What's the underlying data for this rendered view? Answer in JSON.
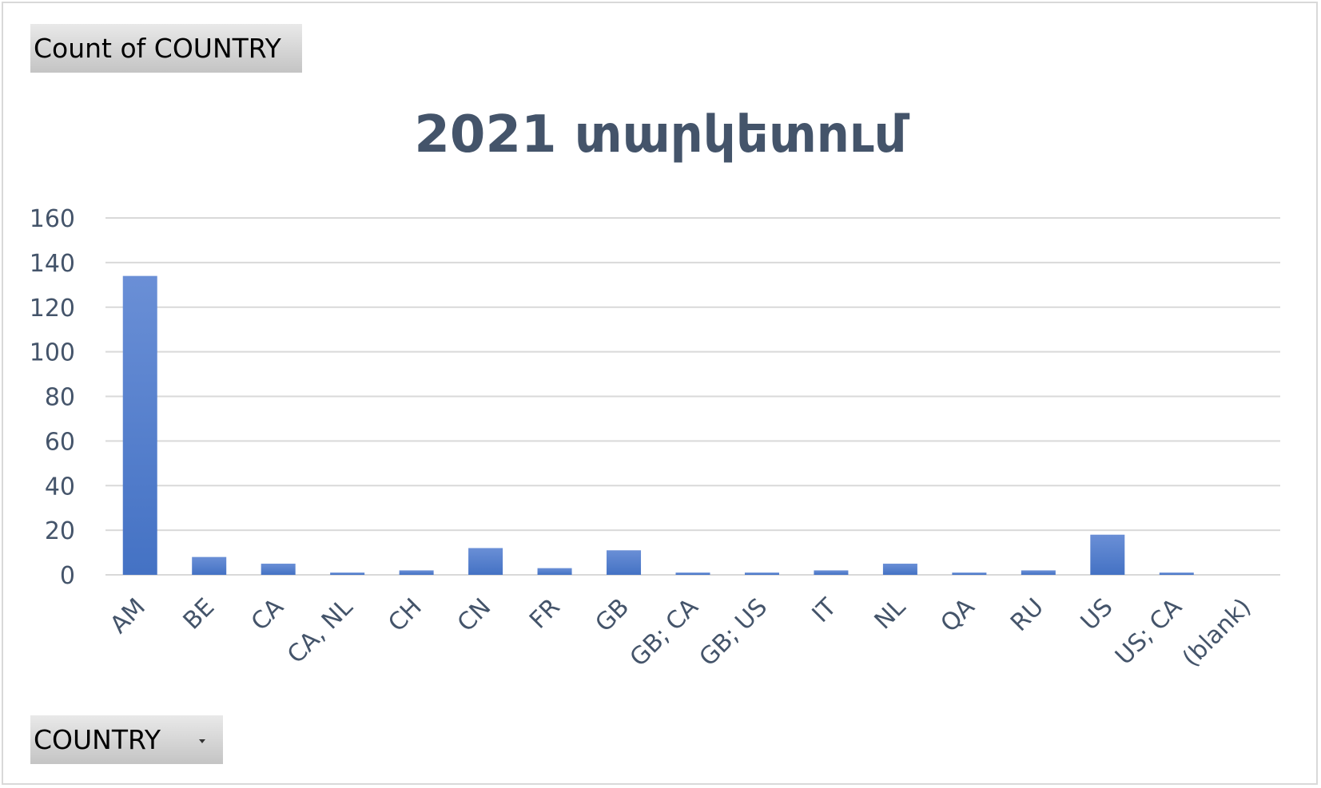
{
  "value_field_button": {
    "label": "Count of COUNTRY"
  },
  "axis_field_button": {
    "label": "COUNTRY"
  },
  "chart_data": {
    "type": "bar",
    "title": "2021 տարկետում",
    "categories": [
      "AM",
      "BE",
      "CA",
      "CA, NL",
      "CH",
      "CN",
      "FR",
      "GB",
      "GB; CA",
      "GB; US",
      "IT",
      "NL",
      "QA",
      "RU",
      "US",
      "US; CA",
      "(blank)"
    ],
    "values": [
      134,
      8,
      5,
      1,
      2,
      12,
      3,
      11,
      1,
      1,
      2,
      5,
      1,
      2,
      18,
      1,
      0
    ],
    "ylim": [
      0,
      160
    ],
    "yticks": [
      0,
      20,
      40,
      60,
      80,
      100,
      120,
      140,
      160
    ],
    "grid": true,
    "bar_color": "#4472c4",
    "legend": "none"
  }
}
